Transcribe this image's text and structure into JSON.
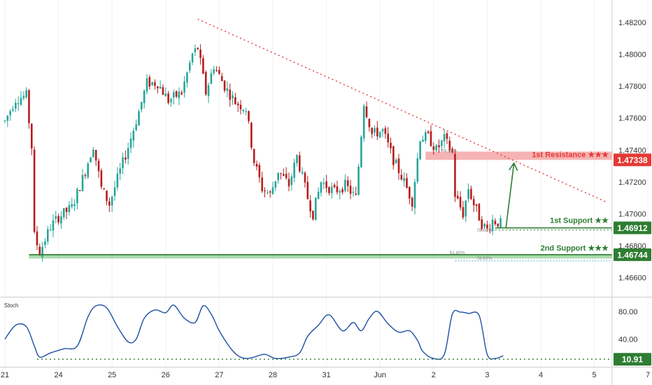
{
  "colors": {
    "up": "#26a69a",
    "down": "#b71c1c",
    "resistance": "#e53935",
    "resistance_zone": "#f4a6a6",
    "support": "#2e7d32",
    "support_zone": "#66bb6a",
    "stoch_line": "#1e4fa3",
    "trendline": "#e53935",
    "axis_text": "#333333"
  },
  "chart_data": [
    {
      "type": "candlestick",
      "ylim": [
        1.4648,
        1.4834
      ],
      "y_ticks": [
        "1.48200",
        "1.48000",
        "1.47800",
        "1.47600",
        "1.47400",
        "1.47200",
        "1.47000",
        "1.46800",
        "1.46600"
      ],
      "y_tick_values": [
        1.482,
        1.48,
        1.478,
        1.476,
        1.474,
        1.472,
        1.47,
        1.468,
        1.466
      ],
      "x_ticks": [
        "21",
        "24",
        "25",
        "26",
        "27",
        "28",
        "31",
        "Jun",
        "2",
        "3",
        "4",
        "5",
        "7"
      ],
      "x_tick_index": [
        0,
        20,
        40,
        60,
        80,
        100,
        120,
        140,
        160,
        180,
        200,
        220,
        240
      ],
      "anchors": [
        [
          0,
          1.4758
        ],
        [
          4,
          1.4772
        ],
        [
          8,
          1.4774
        ],
        [
          10,
          1.4742
        ],
        [
          11,
          1.4686
        ],
        [
          13,
          1.4676
        ],
        [
          17,
          1.4692
        ],
        [
          20,
          1.4698
        ],
        [
          25,
          1.4704
        ],
        [
          29,
          1.4722
        ],
        [
          33,
          1.4743
        ],
        [
          36,
          1.4716
        ],
        [
          39,
          1.4706
        ],
        [
          42,
          1.4722
        ],
        [
          46,
          1.4742
        ],
        [
          50,
          1.4764
        ],
        [
          53,
          1.4782
        ],
        [
          57,
          1.4782
        ],
        [
          61,
          1.4771
        ],
        [
          66,
          1.4776
        ],
        [
          70,
          1.48
        ],
        [
          72,
          1.4804
        ],
        [
          75,
          1.4776
        ],
        [
          78,
          1.4793
        ],
        [
          82,
          1.478
        ],
        [
          86,
          1.477
        ],
        [
          90,
          1.4766
        ],
        [
          93,
          1.4733
        ],
        [
          96,
          1.4716
        ],
        [
          99,
          1.4712
        ],
        [
          102,
          1.4727
        ],
        [
          106,
          1.4718
        ],
        [
          109,
          1.4736
        ],
        [
          113,
          1.471
        ],
        [
          115,
          1.47
        ],
        [
          118,
          1.472
        ],
        [
          123,
          1.4714
        ],
        [
          127,
          1.4718
        ],
        [
          131,
          1.471
        ],
        [
          134,
          1.477
        ],
        [
          137,
          1.475
        ],
        [
          141,
          1.4752
        ],
        [
          145,
          1.4734
        ],
        [
          149,
          1.472
        ],
        [
          152,
          1.4708
        ],
        [
          155,
          1.4748
        ],
        [
          158,
          1.4748
        ],
        [
          161,
          1.474
        ],
        [
          164,
          1.4747
        ],
        [
          167,
          1.4738
        ],
        [
          168,
          1.4712
        ],
        [
          171,
          1.47
        ],
        [
          173,
          1.4716
        ],
        [
          175,
          1.4706
        ],
        [
          178,
          1.4694
        ],
        [
          180,
          1.469
        ],
        [
          182,
          1.4696
        ],
        [
          185,
          1.4694
        ]
      ],
      "trendline": {
        "from": [
          72,
          1.4822
        ],
        "to": [
          225,
          1.4707
        ]
      },
      "levels": [
        {
          "label": "1st Resistance ★★★",
          "value": "1.47338",
          "price": 1.47338,
          "zone": [
            1.47338,
            1.4739
          ]
        },
        {
          "label": "1st Support ★★",
          "value": "1.46912",
          "price": 1.46912
        },
        {
          "label": "2nd Support ★★★",
          "value": "1.46744",
          "price": 1.46744,
          "zone": [
            1.4672,
            1.46744
          ]
        }
      ],
      "fib_labels": [
        {
          "text": "78.60%",
          "x": 163,
          "price": 1.47385
        },
        {
          "text": "78.60%",
          "x": 176,
          "price": 1.46888
        },
        {
          "text": "61.80%",
          "x": 166,
          "price": 1.46748
        },
        {
          "text": "78.60%",
          "x": 176,
          "price": 1.46712
        }
      ],
      "projection": {
        "from": [
          187,
          1.46912
        ],
        "to": [
          190,
          1.47318
        ]
      }
    },
    {
      "type": "line",
      "title": "Stoch",
      "ylim": [
        0,
        100
      ],
      "y_ticks": [
        "80.00",
        "40.00"
      ],
      "y_tick_values": [
        80,
        40
      ],
      "level": {
        "value": "10.91",
        "price": 10.91
      },
      "x": [
        0,
        4,
        8,
        11,
        13,
        17,
        22,
        27,
        31,
        34,
        38,
        42,
        46,
        49,
        52,
        56,
        60,
        63,
        67,
        71,
        74,
        77,
        80,
        84,
        87,
        90,
        93,
        97,
        101,
        106,
        110,
        113,
        117,
        121,
        126,
        130,
        133,
        136,
        139,
        143,
        147,
        151,
        154,
        156,
        160,
        164,
        167,
        170,
        173,
        177,
        180,
        183,
        186
      ],
      "y": [
        40,
        60,
        58,
        30,
        14,
        20,
        26,
        30,
        72,
        88,
        85,
        58,
        36,
        40,
        70,
        82,
        78,
        89,
        70,
        64,
        88,
        76,
        52,
        28,
        16,
        12,
        14,
        18,
        12,
        14,
        20,
        44,
        60,
        75,
        52,
        64,
        52,
        70,
        80,
        62,
        50,
        52,
        38,
        22,
        12,
        18,
        76,
        79,
        77,
        74,
        18,
        12,
        16
      ]
    }
  ]
}
